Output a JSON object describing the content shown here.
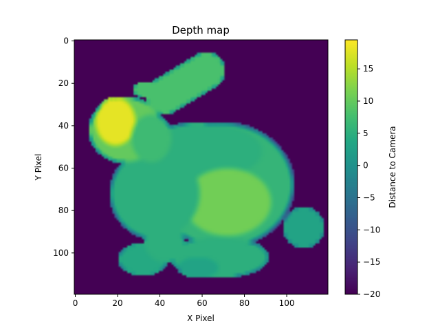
{
  "chart_data": {
    "type": "heatmap",
    "title": "Depth map",
    "xlabel": "X Pixel",
    "ylabel": "Y Pixel",
    "xlim": [
      -0.5,
      119.5
    ],
    "ylim": [
      119.5,
      -0.5
    ],
    "xticks": [
      0,
      20,
      40,
      60,
      80,
      100
    ],
    "yticks": [
      0,
      20,
      40,
      60,
      80,
      100
    ],
    "grid": false,
    "colormap": "viridis",
    "background_value": -20,
    "colorbar": {
      "label": "Distance to Camera",
      "range": [
        -20,
        19.5
      ],
      "ticks": [
        -20,
        -15,
        -10,
        -5,
        0,
        5,
        10,
        15
      ]
    },
    "regions": [
      {
        "name": "body",
        "shape": "ellipse",
        "cx": 70,
        "cy": 68,
        "rx": 34,
        "ry": 30,
        "value": 6
      },
      {
        "name": "body-upper",
        "shape": "ellipse",
        "cx": 60,
        "cy": 52,
        "rx": 30,
        "ry": 14,
        "value": 5
      },
      {
        "name": "haunch",
        "shape": "ellipse",
        "cx": 72,
        "cy": 76,
        "rx": 22,
        "ry": 17,
        "value": 11
      },
      {
        "name": "tail-side",
        "shape": "ellipse",
        "cx": 108,
        "cy": 88,
        "rx": 10,
        "ry": 10,
        "value": 3
      },
      {
        "name": "chest",
        "shape": "ellipse",
        "cx": 38,
        "cy": 72,
        "rx": 22,
        "ry": 22,
        "value": 5
      },
      {
        "name": "head",
        "shape": "ellipse",
        "cx": 24,
        "cy": 42,
        "rx": 18,
        "ry": 16,
        "value": 10
      },
      {
        "name": "head-highlight",
        "shape": "ellipse",
        "cx": 19,
        "cy": 38,
        "rx": 10,
        "ry": 12,
        "value": 18
      },
      {
        "name": "neck",
        "shape": "ellipse",
        "cx": 36,
        "cy": 46,
        "rx": 10,
        "ry": 12,
        "value": 7
      },
      {
        "name": "ear-back",
        "shape": "ellipse",
        "cx": 33,
        "cy": 23,
        "rx": 6,
        "ry": 4,
        "value": 8
      },
      {
        "name": "ear",
        "shape": "capsule",
        "x1": 42,
        "y1": 26,
        "x2": 62,
        "y2": 14,
        "width": 9,
        "value": 8
      },
      {
        "name": "front-paw",
        "shape": "ellipse",
        "cx": 32,
        "cy": 103,
        "rx": 12,
        "ry": 8,
        "value": 4
      },
      {
        "name": "front-leg",
        "shape": "ellipse",
        "cx": 42,
        "cy": 95,
        "rx": 10,
        "ry": 10,
        "value": 5
      },
      {
        "name": "hind-foot",
        "shape": "ellipse",
        "cx": 68,
        "cy": 102,
        "rx": 24,
        "ry": 10,
        "value": 5
      },
      {
        "name": "hind-toe",
        "shape": "ellipse",
        "cx": 58,
        "cy": 107,
        "rx": 10,
        "ry": 5,
        "value": 3
      }
    ]
  }
}
